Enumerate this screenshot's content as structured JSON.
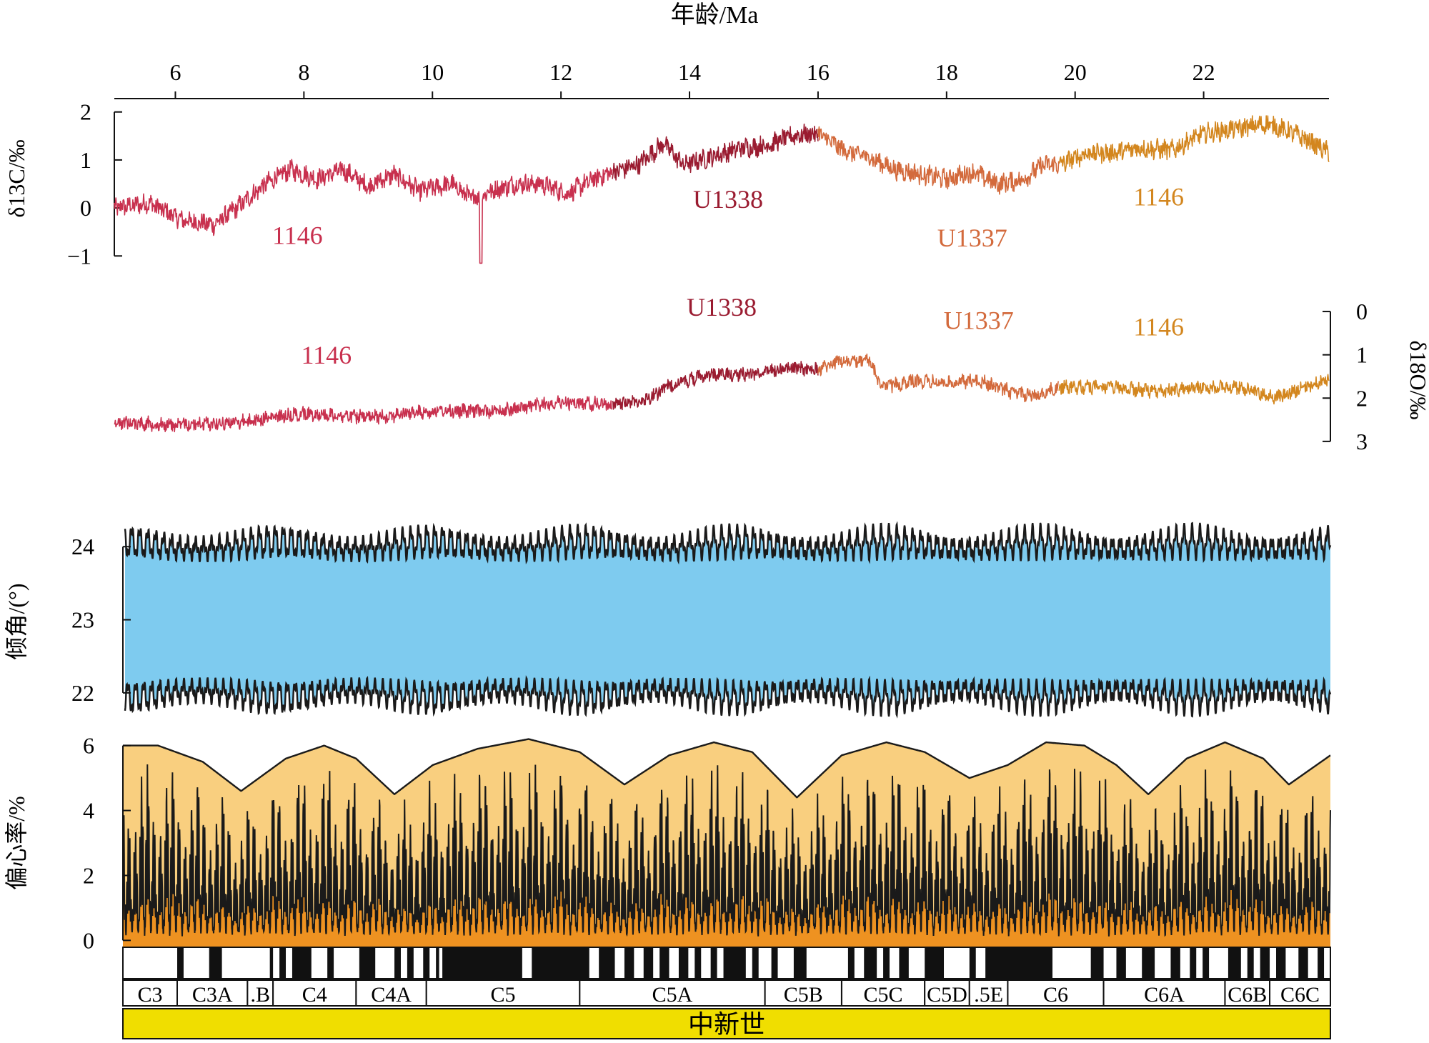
{
  "figure": {
    "top_axis_label": "年龄/Ma",
    "age_ticks": [
      6,
      8,
      10,
      12,
      14,
      16,
      18,
      20,
      22
    ]
  },
  "colors": {
    "site1146_young": "#c8304e",
    "u1338": "#9a1b30",
    "u1337": "#d36a3c",
    "site1146_old": "#d3861e",
    "obliquity_fill": "#7ecbef",
    "ecc_envelope_fill": "#f9cf7f",
    "ecc_fill": "#ee9221",
    "epoch_bar": "#f0de00",
    "trace": "#1a1a1a"
  },
  "chart_data": [
    {
      "type": "line",
      "panel": "d13c",
      "ylabel": "δ13C/‰",
      "yticks": [
        2,
        1,
        0,
        -1
      ],
      "ylim": [
        -1.1,
        2.1
      ],
      "xlim": [
        5.05,
        23.95
      ],
      "series": [
        {
          "name": "1146",
          "x_range": [
            5.05,
            12.8
          ],
          "knots": [
            [
              5.05,
              0.0
            ],
            [
              5.6,
              0.1
            ],
            [
              6.1,
              -0.25
            ],
            [
              6.6,
              -0.35
            ],
            [
              7.0,
              0.05
            ],
            [
              7.4,
              0.5
            ],
            [
              7.8,
              0.8
            ],
            [
              8.2,
              0.6
            ],
            [
              8.6,
              0.8
            ],
            [
              9.0,
              0.45
            ],
            [
              9.4,
              0.7
            ],
            [
              9.8,
              0.35
            ],
            [
              10.3,
              0.5
            ],
            [
              10.6,
              0.2
            ],
            [
              10.9,
              0.35
            ],
            [
              11.3,
              0.5
            ],
            [
              11.7,
              0.5
            ],
            [
              12.1,
              0.3
            ],
            [
              12.5,
              0.6
            ],
            [
              12.8,
              0.75
            ]
          ]
        },
        {
          "name": "U1338",
          "x_range": [
            12.8,
            16.0
          ],
          "knots": [
            [
              12.8,
              0.75
            ],
            [
              13.2,
              0.9
            ],
            [
              13.6,
              1.35
            ],
            [
              13.9,
              0.9
            ],
            [
              14.3,
              1.05
            ],
            [
              14.8,
              1.25
            ],
            [
              15.2,
              1.3
            ],
            [
              15.6,
              1.5
            ],
            [
              16.0,
              1.55
            ]
          ]
        },
        {
          "name": "U1337",
          "x_range": [
            16.0,
            19.75
          ],
          "knots": [
            [
              16.0,
              1.55
            ],
            [
              16.4,
              1.2
            ],
            [
              16.8,
              1.05
            ],
            [
              17.2,
              0.8
            ],
            [
              17.6,
              0.7
            ],
            [
              18.0,
              0.6
            ],
            [
              18.4,
              0.75
            ],
            [
              18.8,
              0.5
            ],
            [
              19.2,
              0.6
            ],
            [
              19.5,
              0.9
            ],
            [
              19.75,
              0.9
            ]
          ]
        },
        {
          "name": "1146",
          "x_range": [
            19.75,
            23.95
          ],
          "knots": [
            [
              19.75,
              0.9
            ],
            [
              20.2,
              1.15
            ],
            [
              20.6,
              1.15
            ],
            [
              21.0,
              1.25
            ],
            [
              21.5,
              1.2
            ],
            [
              22.0,
              1.55
            ],
            [
              22.5,
              1.65
            ],
            [
              23.0,
              1.75
            ],
            [
              23.4,
              1.55
            ],
            [
              23.7,
              1.35
            ],
            [
              23.95,
              1.15
            ]
          ]
        }
      ],
      "labels": [
        {
          "text": "1146",
          "x": 7.9,
          "y": -0.75
        },
        {
          "text": "U1338",
          "x": 14.6,
          "y": 0.0
        },
        {
          "text": "U1337",
          "x": 18.4,
          "y": -0.8
        },
        {
          "text": "1146",
          "x": 21.3,
          "y": 0.05
        }
      ]
    },
    {
      "type": "line",
      "panel": "d18o",
      "ylabel": "δ18O/‰",
      "yticks": [
        0,
        1,
        2,
        3
      ],
      "ylim": [
        -0.1,
        3.2
      ],
      "reversed": true,
      "xlim": [
        5.05,
        23.95
      ],
      "series": [
        {
          "name": "1146",
          "x_range": [
            5.05,
            12.8
          ],
          "knots": [
            [
              5.05,
              2.55
            ],
            [
              6.0,
              2.62
            ],
            [
              7.0,
              2.55
            ],
            [
              8.0,
              2.35
            ],
            [
              9.0,
              2.45
            ],
            [
              10.0,
              2.3
            ],
            [
              11.0,
              2.3
            ],
            [
              12.0,
              2.1
            ],
            [
              12.8,
              2.15
            ]
          ]
        },
        {
          "name": "U1338",
          "x_range": [
            12.8,
            16.0
          ],
          "knots": [
            [
              12.8,
              2.15
            ],
            [
              13.3,
              2.05
            ],
            [
              13.7,
              1.7
            ],
            [
              14.3,
              1.45
            ],
            [
              14.9,
              1.45
            ],
            [
              15.5,
              1.3
            ],
            [
              16.0,
              1.35
            ]
          ]
        },
        {
          "name": "U1337",
          "x_range": [
            16.0,
            19.75
          ],
          "knots": [
            [
              16.0,
              1.35
            ],
            [
              16.3,
              1.15
            ],
            [
              16.8,
              1.15
            ],
            [
              17.0,
              1.75
            ],
            [
              17.5,
              1.6
            ],
            [
              18.0,
              1.65
            ],
            [
              18.5,
              1.6
            ],
            [
              19.0,
              1.85
            ],
            [
              19.4,
              1.95
            ],
            [
              19.75,
              1.75
            ]
          ]
        },
        {
          "name": "1146",
          "x_range": [
            19.75,
            23.95
          ],
          "knots": [
            [
              19.75,
              1.75
            ],
            [
              20.5,
              1.75
            ],
            [
              21.3,
              1.85
            ],
            [
              22.0,
              1.75
            ],
            [
              22.6,
              1.75
            ],
            [
              23.1,
              2.0
            ],
            [
              23.5,
              1.8
            ],
            [
              23.95,
              1.55
            ]
          ]
        }
      ],
      "labels": [
        {
          "text": "1146",
          "x": 8.35,
          "y": 1.2
        },
        {
          "text": "U1338",
          "x": 14.5,
          "y": 0.1
        },
        {
          "text": "U1337",
          "x": 18.5,
          "y": 0.4
        },
        {
          "text": "1146",
          "x": 21.3,
          "y": 0.55
        }
      ]
    },
    {
      "type": "area",
      "panel": "obliquity",
      "ylabel": "倾角/(°)",
      "yticks": [
        24,
        23,
        22
      ],
      "ylim": [
        21.95,
        24.1
      ],
      "xlim": [
        5.05,
        23.95
      ],
      "center": 23.0,
      "half_width_range": [
        0.35,
        1.25
      ]
    },
    {
      "type": "area",
      "panel": "eccentricity",
      "ylabel": "偏心率/%",
      "yticks": [
        6,
        4,
        2,
        0
      ],
      "ylim": [
        -0.3,
        6.3
      ],
      "xlim": [
        5.05,
        23.95
      ],
      "envelope_knots": [
        [
          5.05,
          6.0
        ],
        [
          5.6,
          6.0
        ],
        [
          6.3,
          5.5
        ],
        [
          6.9,
          4.6
        ],
        [
          7.6,
          5.6
        ],
        [
          8.2,
          6.0
        ],
        [
          8.7,
          5.6
        ],
        [
          9.3,
          4.5
        ],
        [
          9.9,
          5.4
        ],
        [
          10.6,
          5.9
        ],
        [
          11.4,
          6.2
        ],
        [
          12.2,
          5.8
        ],
        [
          12.9,
          4.8
        ],
        [
          13.6,
          5.7
        ],
        [
          14.3,
          6.1
        ],
        [
          14.9,
          5.8
        ],
        [
          15.6,
          4.4
        ],
        [
          16.3,
          5.7
        ],
        [
          17.0,
          6.1
        ],
        [
          17.6,
          5.8
        ],
        [
          18.3,
          5.0
        ],
        [
          18.9,
          5.4
        ],
        [
          19.5,
          6.1
        ],
        [
          20.1,
          6.0
        ],
        [
          20.6,
          5.4
        ],
        [
          21.1,
          4.5
        ],
        [
          21.7,
          5.6
        ],
        [
          22.3,
          6.1
        ],
        [
          22.9,
          5.6
        ],
        [
          23.3,
          4.8
        ],
        [
          23.95,
          5.7
        ]
      ]
    },
    {
      "type": "table",
      "panel": "magnetochrons",
      "chrons": [
        {
          "name": "C3",
          "x0": 5.05,
          "x1": 5.9
        },
        {
          "name": "C3A",
          "x0": 5.9,
          "x1": 7.0
        },
        {
          "name": ".B",
          "x0": 7.0,
          "x1": 7.4
        },
        {
          "name": "C4",
          "x0": 7.4,
          "x1": 8.7
        },
        {
          "name": "C4A",
          "x0": 8.7,
          "x1": 9.8
        },
        {
          "name": "C5",
          "x0": 9.8,
          "x1": 12.2
        },
        {
          "name": "C5A",
          "x0": 12.2,
          "x1": 15.1
        },
        {
          "name": "C5B",
          "x0": 15.1,
          "x1": 16.3
        },
        {
          "name": "C5C",
          "x0": 16.3,
          "x1": 17.6
        },
        {
          "name": "C5D",
          "x0": 17.6,
          "x1": 18.3
        },
        {
          "name": ".5E",
          "x0": 18.3,
          "x1": 18.9
        },
        {
          "name": "C6",
          "x0": 18.9,
          "x1": 20.4
        },
        {
          "name": "C6A",
          "x0": 20.4,
          "x1": 22.3
        },
        {
          "name": "C6B",
          "x0": 22.3,
          "x1": 23.0
        },
        {
          "name": "C6C",
          "x0": 23.0,
          "x1": 23.95
        }
      ],
      "normal_polarity": [
        [
          5.9,
          6.0
        ],
        [
          6.4,
          6.6
        ],
        [
          7.35,
          7.4
        ],
        [
          7.5,
          7.6
        ],
        [
          7.7,
          8.0
        ],
        [
          8.25,
          8.35
        ],
        [
          8.75,
          9.0
        ],
        [
          9.3,
          9.4
        ],
        [
          9.5,
          9.6
        ],
        [
          9.75,
          9.85
        ],
        [
          9.95,
          10.0
        ],
        [
          10.05,
          11.3
        ],
        [
          11.45,
          12.35
        ],
        [
          12.5,
          12.75
        ],
        [
          12.9,
          13.05
        ],
        [
          13.2,
          13.35
        ],
        [
          13.45,
          13.6
        ],
        [
          13.75,
          13.9
        ],
        [
          14.0,
          14.1
        ],
        [
          14.25,
          14.35
        ],
        [
          14.45,
          14.8
        ],
        [
          14.9,
          15.0
        ],
        [
          15.2,
          15.3
        ],
        [
          15.55,
          15.75
        ],
        [
          16.4,
          16.5
        ],
        [
          16.65,
          16.85
        ],
        [
          16.95,
          17.05
        ],
        [
          17.2,
          17.35
        ],
        [
          17.6,
          17.9
        ],
        [
          18.3,
          18.4
        ],
        [
          18.55,
          19.6
        ],
        [
          20.2,
          20.4
        ],
        [
          20.6,
          20.75
        ],
        [
          21.0,
          21.2
        ],
        [
          21.45,
          21.6
        ],
        [
          21.75,
          21.85
        ],
        [
          21.95,
          22.05
        ],
        [
          22.35,
          22.55
        ],
        [
          22.65,
          22.75
        ],
        [
          22.85,
          23.0
        ],
        [
          23.1,
          23.25
        ],
        [
          23.45,
          23.6
        ],
        [
          23.75,
          23.85
        ]
      ],
      "epoch": "中新世"
    }
  ]
}
